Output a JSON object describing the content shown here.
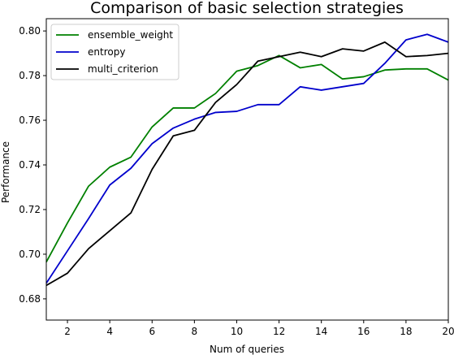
{
  "chart_data": {
    "type": "line",
    "title": "Comparison of basic selection strategies",
    "xlabel": "Num of queries",
    "ylabel": "Performance",
    "xlim": [
      1,
      20
    ],
    "ylim": [
      0.6705,
      0.8055
    ],
    "xticks": [
      2,
      4,
      6,
      8,
      10,
      12,
      14,
      16,
      18,
      20
    ],
    "yticks": [
      0.68,
      0.7,
      0.72,
      0.74,
      0.76,
      0.78,
      0.8
    ],
    "ytick_labels": [
      "0.68",
      "0.70",
      "0.72",
      "0.74",
      "0.76",
      "0.78",
      "0.80"
    ],
    "grid": false,
    "legend_position": "top-left",
    "x": [
      1,
      2,
      3,
      4,
      5,
      6,
      7,
      8,
      9,
      10,
      11,
      12,
      13,
      14,
      15,
      16,
      17,
      18,
      19,
      20
    ],
    "series": [
      {
        "name": "ensemble_weight",
        "color": "#008000",
        "values": [
          0.6965,
          0.714,
          0.7305,
          0.739,
          0.7435,
          0.757,
          0.7655,
          0.7655,
          0.772,
          0.782,
          0.7845,
          0.789,
          0.7835,
          0.785,
          0.7785,
          0.7795,
          0.7825,
          0.783,
          0.783,
          0.778
        ]
      },
      {
        "name": "entropy",
        "color": "#0000cc",
        "values": [
          0.687,
          0.7015,
          0.716,
          0.731,
          0.7385,
          0.7495,
          0.7565,
          0.7605,
          0.7635,
          0.764,
          0.767,
          0.767,
          0.775,
          0.7735,
          0.775,
          0.7765,
          0.7855,
          0.796,
          0.7985,
          0.795
        ]
      },
      {
        "name": "multi_criterion",
        "color": "#000000",
        "values": [
          0.686,
          0.6915,
          0.7025,
          0.7105,
          0.7185,
          0.738,
          0.753,
          0.7555,
          0.768,
          0.776,
          0.7865,
          0.7885,
          0.7905,
          0.7885,
          0.792,
          0.791,
          0.795,
          0.7885,
          0.789,
          0.79
        ]
      }
    ]
  }
}
